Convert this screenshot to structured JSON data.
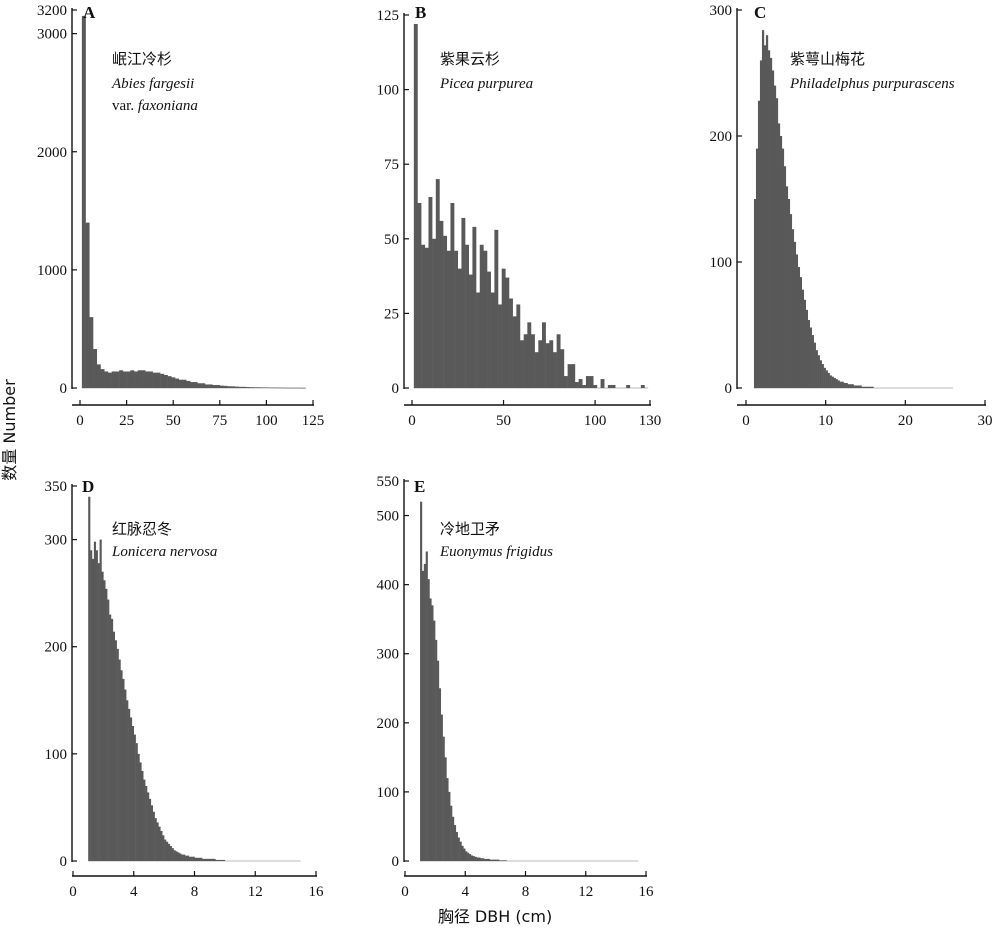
{
  "figure": {
    "ylabel": "数量 Number",
    "xlabel": "胸径 DBH (cm)"
  },
  "chart_data": [
    {
      "type": "bar",
      "panel": "A",
      "species_cn": "岷江冷杉",
      "species_latin_parts": [
        {
          "text": "Abies fargesii",
          "italic": true,
          "line": 0
        },
        {
          "text": "var. ",
          "italic": false,
          "line": 1
        },
        {
          "text": "faxoniana",
          "italic": true,
          "line": 1
        }
      ],
      "bin_start": 1,
      "bin_width": 2,
      "x_end": 121,
      "xlim": [
        0,
        125
      ],
      "ylim": [
        0,
        3200
      ],
      "xticks": [
        0,
        25,
        50,
        75,
        100,
        125
      ],
      "yticks": [
        0,
        1000,
        2000,
        3000,
        3200
      ],
      "values": [
        3150,
        1400,
        600,
        330,
        200,
        160,
        140,
        130,
        140,
        140,
        150,
        140,
        140,
        150,
        140,
        150,
        150,
        140,
        140,
        130,
        130,
        120,
        110,
        100,
        90,
        80,
        70,
        70,
        60,
        50,
        50,
        40,
        40,
        30,
        30,
        25,
        25,
        20,
        18,
        15,
        14,
        12,
        10,
        10,
        8,
        7,
        6,
        6,
        5,
        5,
        4,
        4,
        3,
        3,
        2,
        2,
        2,
        2,
        1,
        1
      ]
    },
    {
      "type": "bar",
      "panel": "B",
      "species_cn": "紫果云杉",
      "species_latin_parts": [
        {
          "text": "Picea purpurea",
          "italic": true,
          "line": 0
        }
      ],
      "bin_start": 1,
      "bin_width": 2,
      "x_end": 129,
      "xlim": [
        0,
        130
      ],
      "ylim": [
        0,
        125
      ],
      "xticks": [
        0,
        50,
        100,
        130
      ],
      "yticks": [
        0,
        25,
        50,
        75,
        100,
        125
      ],
      "values": [
        122,
        62,
        48,
        47,
        64,
        50,
        70,
        56,
        51,
        46,
        62,
        46,
        40,
        57,
        48,
        38,
        54,
        32,
        48,
        46,
        39,
        32,
        53,
        28,
        40,
        37,
        30,
        24,
        28,
        16,
        18,
        22,
        18,
        12,
        16,
        22,
        15,
        16,
        12,
        18,
        13,
        4,
        8,
        8,
        2,
        3,
        1,
        4,
        4,
        1,
        0,
        3,
        0,
        1,
        1,
        0,
        0,
        0,
        1,
        0,
        0,
        0,
        1
      ]
    },
    {
      "type": "bar",
      "panel": "C",
      "species_cn": "紫萼山梅花",
      "species_latin_parts": [
        {
          "text": "Philadelphus purpurascens",
          "italic": true,
          "line": 0
        }
      ],
      "bin_start": 1,
      "bin_width": 0.25,
      "x_end": 26,
      "xlim": [
        0,
        30
      ],
      "ylim": [
        0,
        300
      ],
      "xticks": [
        0,
        10,
        20,
        30
      ],
      "yticks": [
        0,
        100,
        200,
        300
      ],
      "values": [
        150,
        190,
        228,
        260,
        284,
        272,
        280,
        268,
        262,
        252,
        240,
        230,
        210,
        200,
        190,
        176,
        160,
        150,
        138,
        126,
        116,
        106,
        96,
        88,
        78,
        70,
        62,
        54,
        48,
        42,
        36,
        30,
        26,
        22,
        19,
        16,
        14,
        12,
        10,
        9,
        8,
        7,
        6,
        5,
        5,
        4,
        4,
        3,
        3,
        3,
        2,
        2,
        2,
        2,
        1,
        1,
        1,
        1,
        1,
        1
      ]
    },
    {
      "type": "bar",
      "panel": "D",
      "species_cn": "红脉忍冬",
      "species_latin_parts": [
        {
          "text": "Lonicera nervosa",
          "italic": true,
          "line": 0
        }
      ],
      "bin_start": 1,
      "bin_width": 0.125,
      "x_end": 15,
      "xlim": [
        0,
        16
      ],
      "ylim": [
        0,
        350
      ],
      "xticks": [
        0,
        4,
        8,
        12,
        16
      ],
      "yticks": [
        0,
        100,
        200,
        300,
        350
      ],
      "values": [
        340,
        290,
        282,
        298,
        290,
        278,
        300,
        270,
        262,
        254,
        244,
        230,
        226,
        214,
        206,
        198,
        188,
        178,
        170,
        160,
        150,
        142,
        134,
        126,
        118,
        110,
        100,
        92,
        84,
        76,
        70,
        64,
        58,
        52,
        46,
        40,
        36,
        32,
        28,
        24,
        20,
        18,
        16,
        14,
        12,
        10,
        9,
        8,
        7,
        6,
        6,
        5,
        5,
        4,
        4,
        4,
        3,
        3,
        3,
        3,
        2,
        2,
        2,
        2,
        2,
        2,
        2,
        1,
        1,
        1,
        1,
        1
      ]
    },
    {
      "type": "bar",
      "panel": "E",
      "species_cn": "冷地卫矛",
      "species_latin_parts": [
        {
          "text": "Euonymus frigidus",
          "italic": true,
          "line": 0
        }
      ],
      "bin_start": 1,
      "bin_width": 0.125,
      "x_end": 15.5,
      "xlim": [
        0,
        16
      ],
      "ylim": [
        0,
        550
      ],
      "xticks": [
        0,
        4,
        8,
        12,
        16
      ],
      "yticks": [
        0,
        100,
        200,
        300,
        400,
        500,
        550
      ],
      "values": [
        520,
        420,
        430,
        448,
        408,
        380,
        370,
        348,
        320,
        290,
        250,
        212,
        180,
        150,
        120,
        100,
        80,
        64,
        52,
        42,
        34,
        28,
        22,
        18,
        14,
        12,
        10,
        8,
        7,
        6,
        5,
        5,
        4,
        4,
        3,
        3,
        3,
        2,
        2,
        2,
        2,
        2,
        1,
        1,
        1,
        1
      ]
    }
  ]
}
